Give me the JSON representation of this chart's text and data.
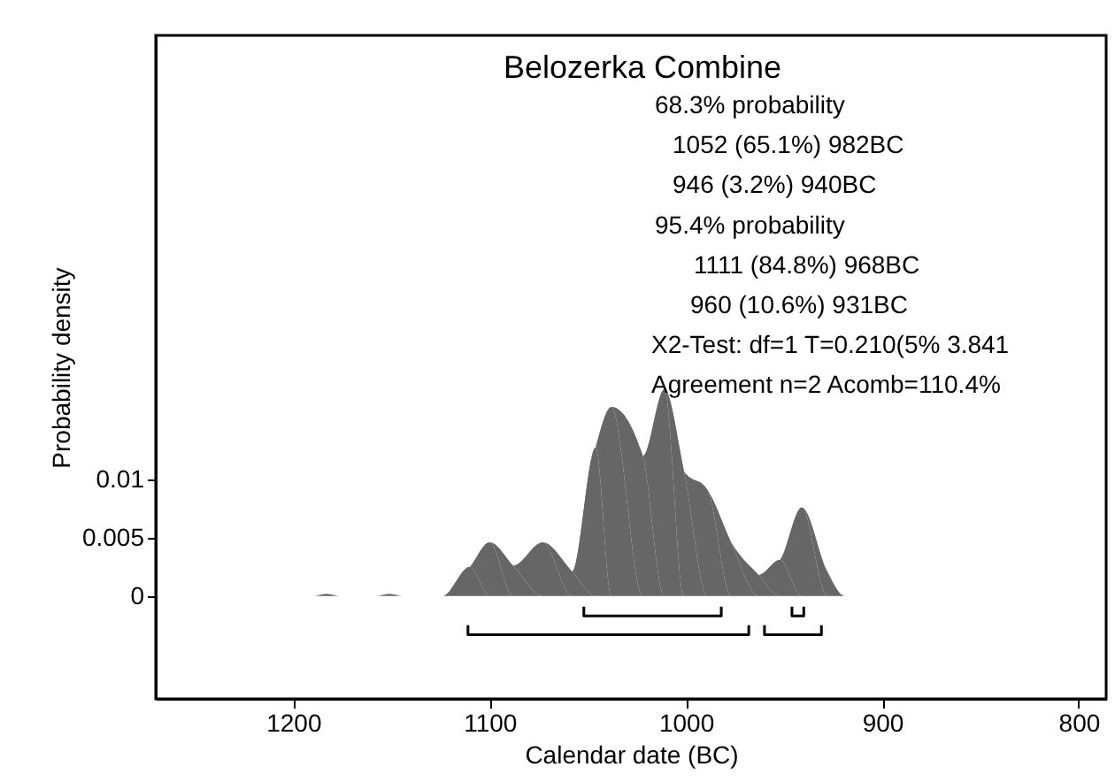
{
  "chart_data": {
    "type": "area",
    "title": "Belozerka Combine",
    "xlabel": "Calendar date (BC)",
    "ylabel": "Probability density",
    "annotations": [
      "68.3% probability",
      "1052 (65.1%) 982BC",
      "946 (3.2%) 940BC",
      "95.4% probability",
      "1111 (84.8%) 968BC",
      "960 (10.6%) 931BC",
      "X2-Test: df=1 T=0.210(5% 3.841",
      "Agreement n=2 Acomb=110.4%"
    ],
    "xlim": [
      1270,
      786
    ],
    "xticks": [
      1200,
      1100,
      1000,
      900,
      800
    ],
    "ylim": [
      -0.0088,
      0.048
    ],
    "yticks": [
      0,
      0.005,
      0.01
    ],
    "grid": false,
    "series": [
      {
        "type": "area",
        "color": "#666666",
        "x": [
          1233,
          1190,
          1183,
          1176,
          1158,
          1151,
          1144,
          1124,
          1110,
          1100,
          1088,
          1073,
          1058,
          1046,
          1038,
          1022,
          1011,
          1001,
          989,
          977,
          963,
          952,
          941,
          928,
          919,
          871
        ],
        "values": [
          0,
          0,
          0.0002,
          0,
          0,
          0.0002,
          0,
          0,
          0.0025,
          0.0046,
          0.0026,
          0.0046,
          0.0021,
          0.0127,
          0.0162,
          0.012,
          0.0177,
          0.0107,
          0.0091,
          0.0046,
          0.0018,
          0.0031,
          0.0076,
          0.0021,
          0,
          0
        ]
      },
      {
        "type": "line",
        "color": "#000000",
        "x": [
          1052,
          1052,
          982,
          982
        ],
        "values": [
          -0.0009,
          -0.0017,
          -0.0017,
          -0.0009
        ]
      },
      {
        "type": "line",
        "color": "#000000",
        "x": [
          946,
          946,
          940,
          940
        ],
        "values": [
          -0.0009,
          -0.0017,
          -0.0017,
          -0.0009
        ]
      },
      {
        "type": "line",
        "color": "#000000",
        "x": [
          1111,
          1111,
          968,
          968
        ],
        "values": [
          -0.0025,
          -0.0033,
          -0.0033,
          -0.0025
        ]
      },
      {
        "type": "line",
        "color": "#000000",
        "x": [
          960,
          960,
          931,
          931
        ],
        "values": [
          -0.0025,
          -0.0033,
          -0.0033,
          -0.0025
        ]
      }
    ]
  }
}
